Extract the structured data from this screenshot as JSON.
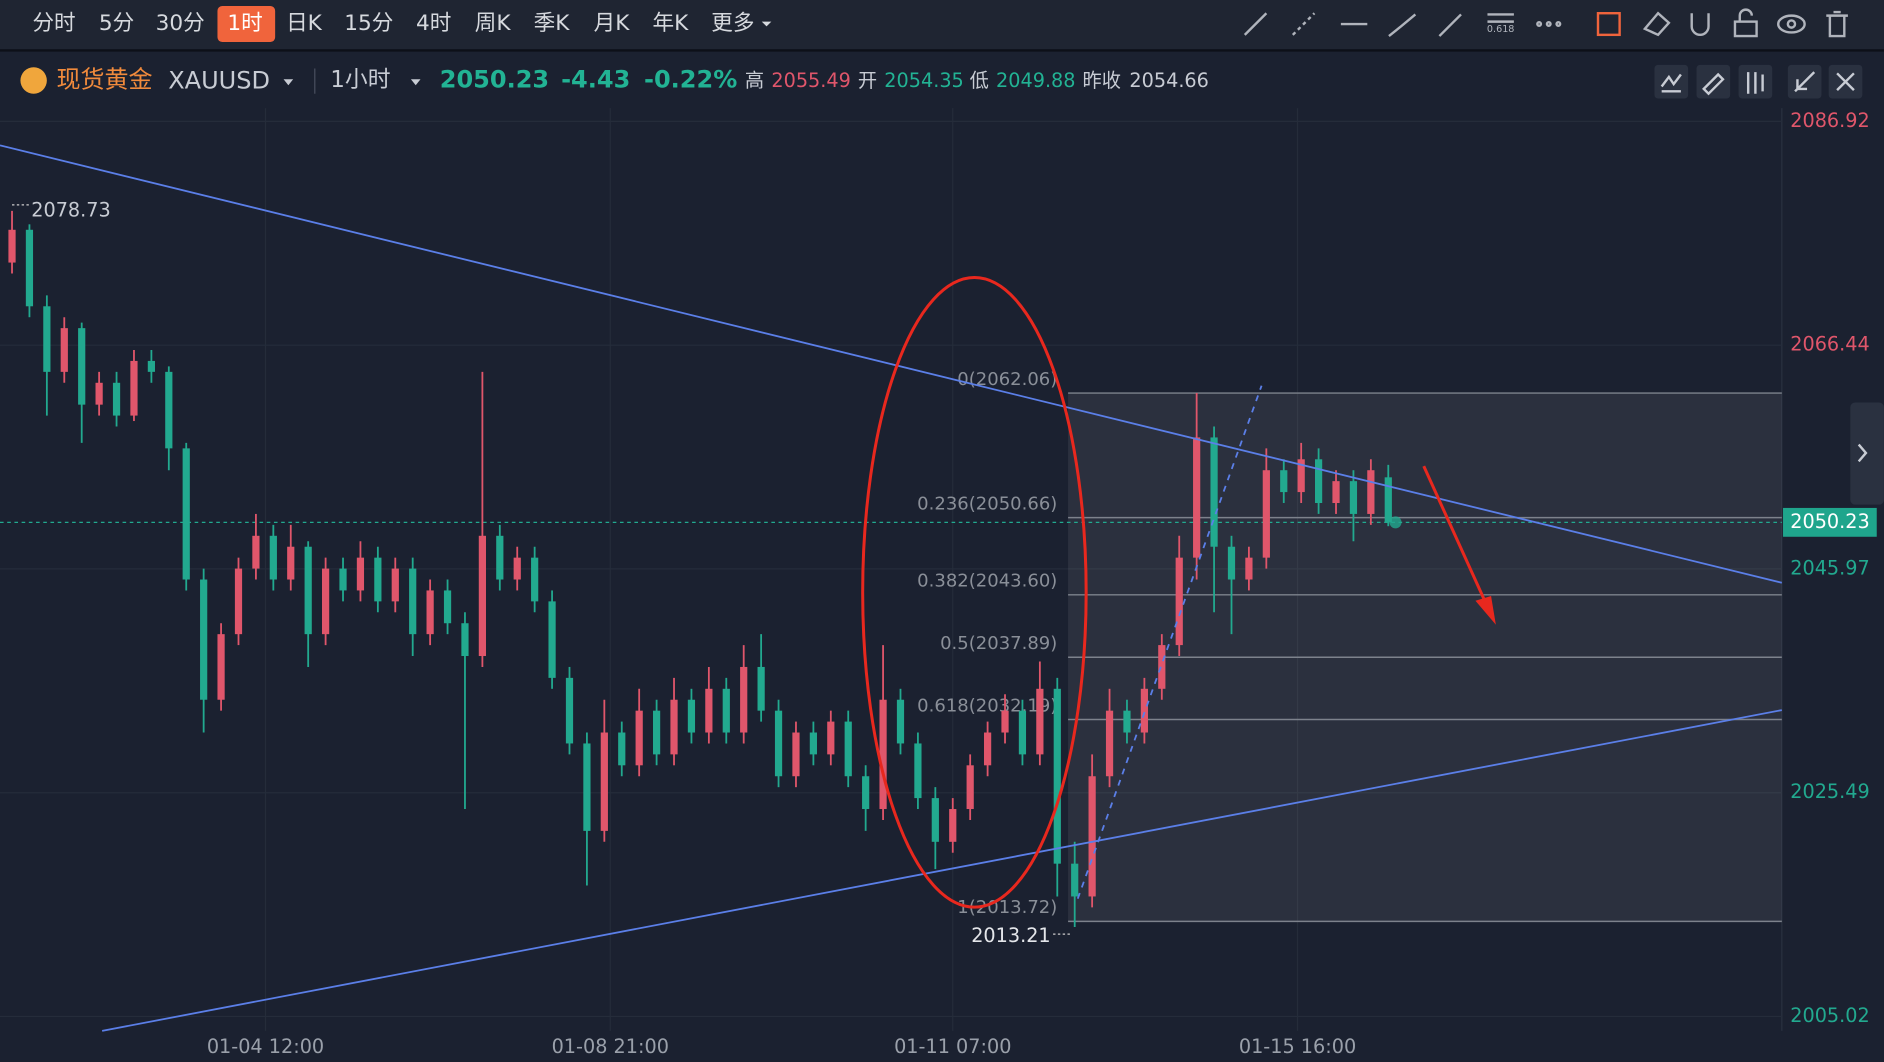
{
  "toolbar": {
    "periods": [
      "分时",
      "5分",
      "30分",
      "1时",
      "日K",
      "15分",
      "4时",
      "周K",
      "季K",
      "月K",
      "年K"
    ],
    "active": 3,
    "more": "更多"
  },
  "header": {
    "name": "现货黄金",
    "symbol": "XAUUSD",
    "interval": "1小时",
    "price": "2050.23",
    "change": "-4.43",
    "change_pct": "-0.22%",
    "high_label": "高",
    "high": "2055.49",
    "open_label": "开",
    "open": "2054.35",
    "low_label": "低",
    "low": "2049.88",
    "prev_label": "昨收",
    "prev_close": "2054.66"
  },
  "chart_data": {
    "type": "candlestick",
    "up_color": "#e0566b",
    "down_color": "#22a98f",
    "ohlc": [
      [
        2074,
        2078.73,
        2073,
        2077
      ],
      [
        2077,
        2077.5,
        2069,
        2070
      ],
      [
        2070,
        2071,
        2060,
        2064
      ],
      [
        2064,
        2069,
        2063,
        2068
      ],
      [
        2068,
        2068.5,
        2057.5,
        2061
      ],
      [
        2061,
        2064,
        2060,
        2063
      ],
      [
        2063,
        2064,
        2059,
        2060
      ],
      [
        2060,
        2066,
        2059.5,
        2065
      ],
      [
        2065,
        2066,
        2063,
        2064
      ],
      [
        2064,
        2064.5,
        2055,
        2057
      ],
      [
        2057,
        2057.5,
        2044,
        2045
      ],
      [
        2045,
        2046,
        2031,
        2034
      ],
      [
        2034,
        2041,
        2033,
        2040
      ],
      [
        2040,
        2047,
        2039,
        2046
      ],
      [
        2046,
        2051,
        2045,
        2049
      ],
      [
        2049,
        2050,
        2044,
        2045
      ],
      [
        2045,
        2050,
        2044,
        2048
      ],
      [
        2048,
        2048.5,
        2037,
        2040
      ],
      [
        2040,
        2047,
        2039,
        2046
      ],
      [
        2046,
        2047,
        2043,
        2044
      ],
      [
        2044,
        2048.5,
        2043,
        2047
      ],
      [
        2047,
        2048,
        2042,
        2043
      ],
      [
        2043,
        2047,
        2042,
        2046
      ],
      [
        2046,
        2047,
        2038,
        2040
      ],
      [
        2040,
        2045,
        2039,
        2044
      ],
      [
        2044,
        2045,
        2040,
        2041
      ],
      [
        2041,
        2042,
        2024,
        2038
      ],
      [
        2038,
        2064,
        2037,
        2049
      ],
      [
        2049,
        2050,
        2044,
        2045
      ],
      [
        2045,
        2048,
        2044,
        2047
      ],
      [
        2047,
        2048,
        2042,
        2043
      ],
      [
        2043,
        2044,
        2035,
        2036
      ],
      [
        2036,
        2037,
        2029,
        2030
      ],
      [
        2030,
        2031,
        2017,
        2022
      ],
      [
        2022,
        2034,
        2021,
        2031
      ],
      [
        2031,
        2032,
        2027,
        2028
      ],
      [
        2028,
        2035,
        2027,
        2033
      ],
      [
        2033,
        2034,
        2028,
        2029
      ],
      [
        2029,
        2036,
        2028,
        2034
      ],
      [
        2034,
        2035,
        2030,
        2031
      ],
      [
        2031,
        2037,
        2030,
        2035
      ],
      [
        2035,
        2036,
        2030,
        2031
      ],
      [
        2031,
        2039,
        2030,
        2037
      ],
      [
        2037,
        2040,
        2032,
        2033
      ],
      [
        2033,
        2034,
        2026,
        2027
      ],
      [
        2027,
        2032,
        2026,
        2031
      ],
      [
        2031,
        2032,
        2028,
        2029
      ],
      [
        2029,
        2033,
        2028,
        2032
      ],
      [
        2032,
        2033,
        2026,
        2027
      ],
      [
        2027,
        2028,
        2022,
        2024
      ],
      [
        2024,
        2039,
        2023,
        2034
      ],
      [
        2034,
        2035,
        2029,
        2030
      ],
      [
        2030,
        2031,
        2024,
        2025
      ],
      [
        2025,
        2026,
        2018.5,
        2021
      ],
      [
        2021,
        2025,
        2020,
        2024
      ],
      [
        2024,
        2029,
        2023,
        2028
      ],
      [
        2028,
        2032,
        2027,
        2031
      ],
      [
        2031,
        2034.5,
        2030,
        2033
      ],
      [
        2033,
        2034,
        2028,
        2029
      ],
      [
        2029,
        2037.5,
        2028,
        2035
      ],
      [
        2035,
        2036,
        2016,
        2019
      ],
      [
        2019,
        2021,
        2013.21,
        2016
      ],
      [
        2016,
        2029,
        2015,
        2027
      ],
      [
        2027,
        2035,
        2026,
        2033
      ],
      [
        2033,
        2034,
        2030,
        2031
      ],
      [
        2031,
        2036,
        2030,
        2035
      ],
      [
        2035,
        2040,
        2034,
        2039
      ],
      [
        2039,
        2049,
        2038,
        2047
      ],
      [
        2047,
        2062.06,
        2045,
        2058
      ],
      [
        2058,
        2059,
        2042,
        2048
      ],
      [
        2048,
        2049,
        2040,
        2045
      ],
      [
        2045,
        2048,
        2044,
        2047
      ],
      [
        2047,
        2057,
        2046,
        2055
      ],
      [
        2055,
        2056,
        2052,
        2053
      ],
      [
        2053,
        2057.5,
        2052,
        2056
      ],
      [
        2056,
        2057,
        2051,
        2052
      ],
      [
        2052,
        2055,
        2051,
        2054
      ],
      [
        2054,
        2055,
        2048.5,
        2051
      ],
      [
        2051,
        2056,
        2050,
        2055
      ],
      [
        2054.35,
        2055.49,
        2049.88,
        2050.23
      ]
    ],
    "xlim": [
      -0.69,
      101.59
    ],
    "ylim": [
      2003.7,
      2088.13
    ],
    "xticks": [
      {
        "value": 14.55,
        "label": "01-04 12:00"
      },
      {
        "value": 34.34,
        "label": "01-08 21:00"
      },
      {
        "value": 54.0,
        "label": "01-11 07:00"
      },
      {
        "value": 73.79,
        "label": "01-15 16:00"
      }
    ],
    "yticks": [
      2086.92,
      2066.44,
      2045.97,
      2025.49,
      2005.02
    ],
    "last_price": 2050.23,
    "high_marker": 2078.73,
    "low_marker": 2013.21,
    "fib_levels": [
      {
        "label": "0(2062.06)",
        "value": 2062.06
      },
      {
        "label": "0.236(2050.66)",
        "value": 2050.66
      },
      {
        "label": "0.382(2043.60)",
        "value": 2043.6
      },
      {
        "label": "0.5(2037.89)",
        "value": 2037.89
      },
      {
        "label": "0.618(2032.19)",
        "value": 2032.19
      },
      {
        "label": "1(2013.72)",
        "value": 2013.72
      }
    ]
  }
}
